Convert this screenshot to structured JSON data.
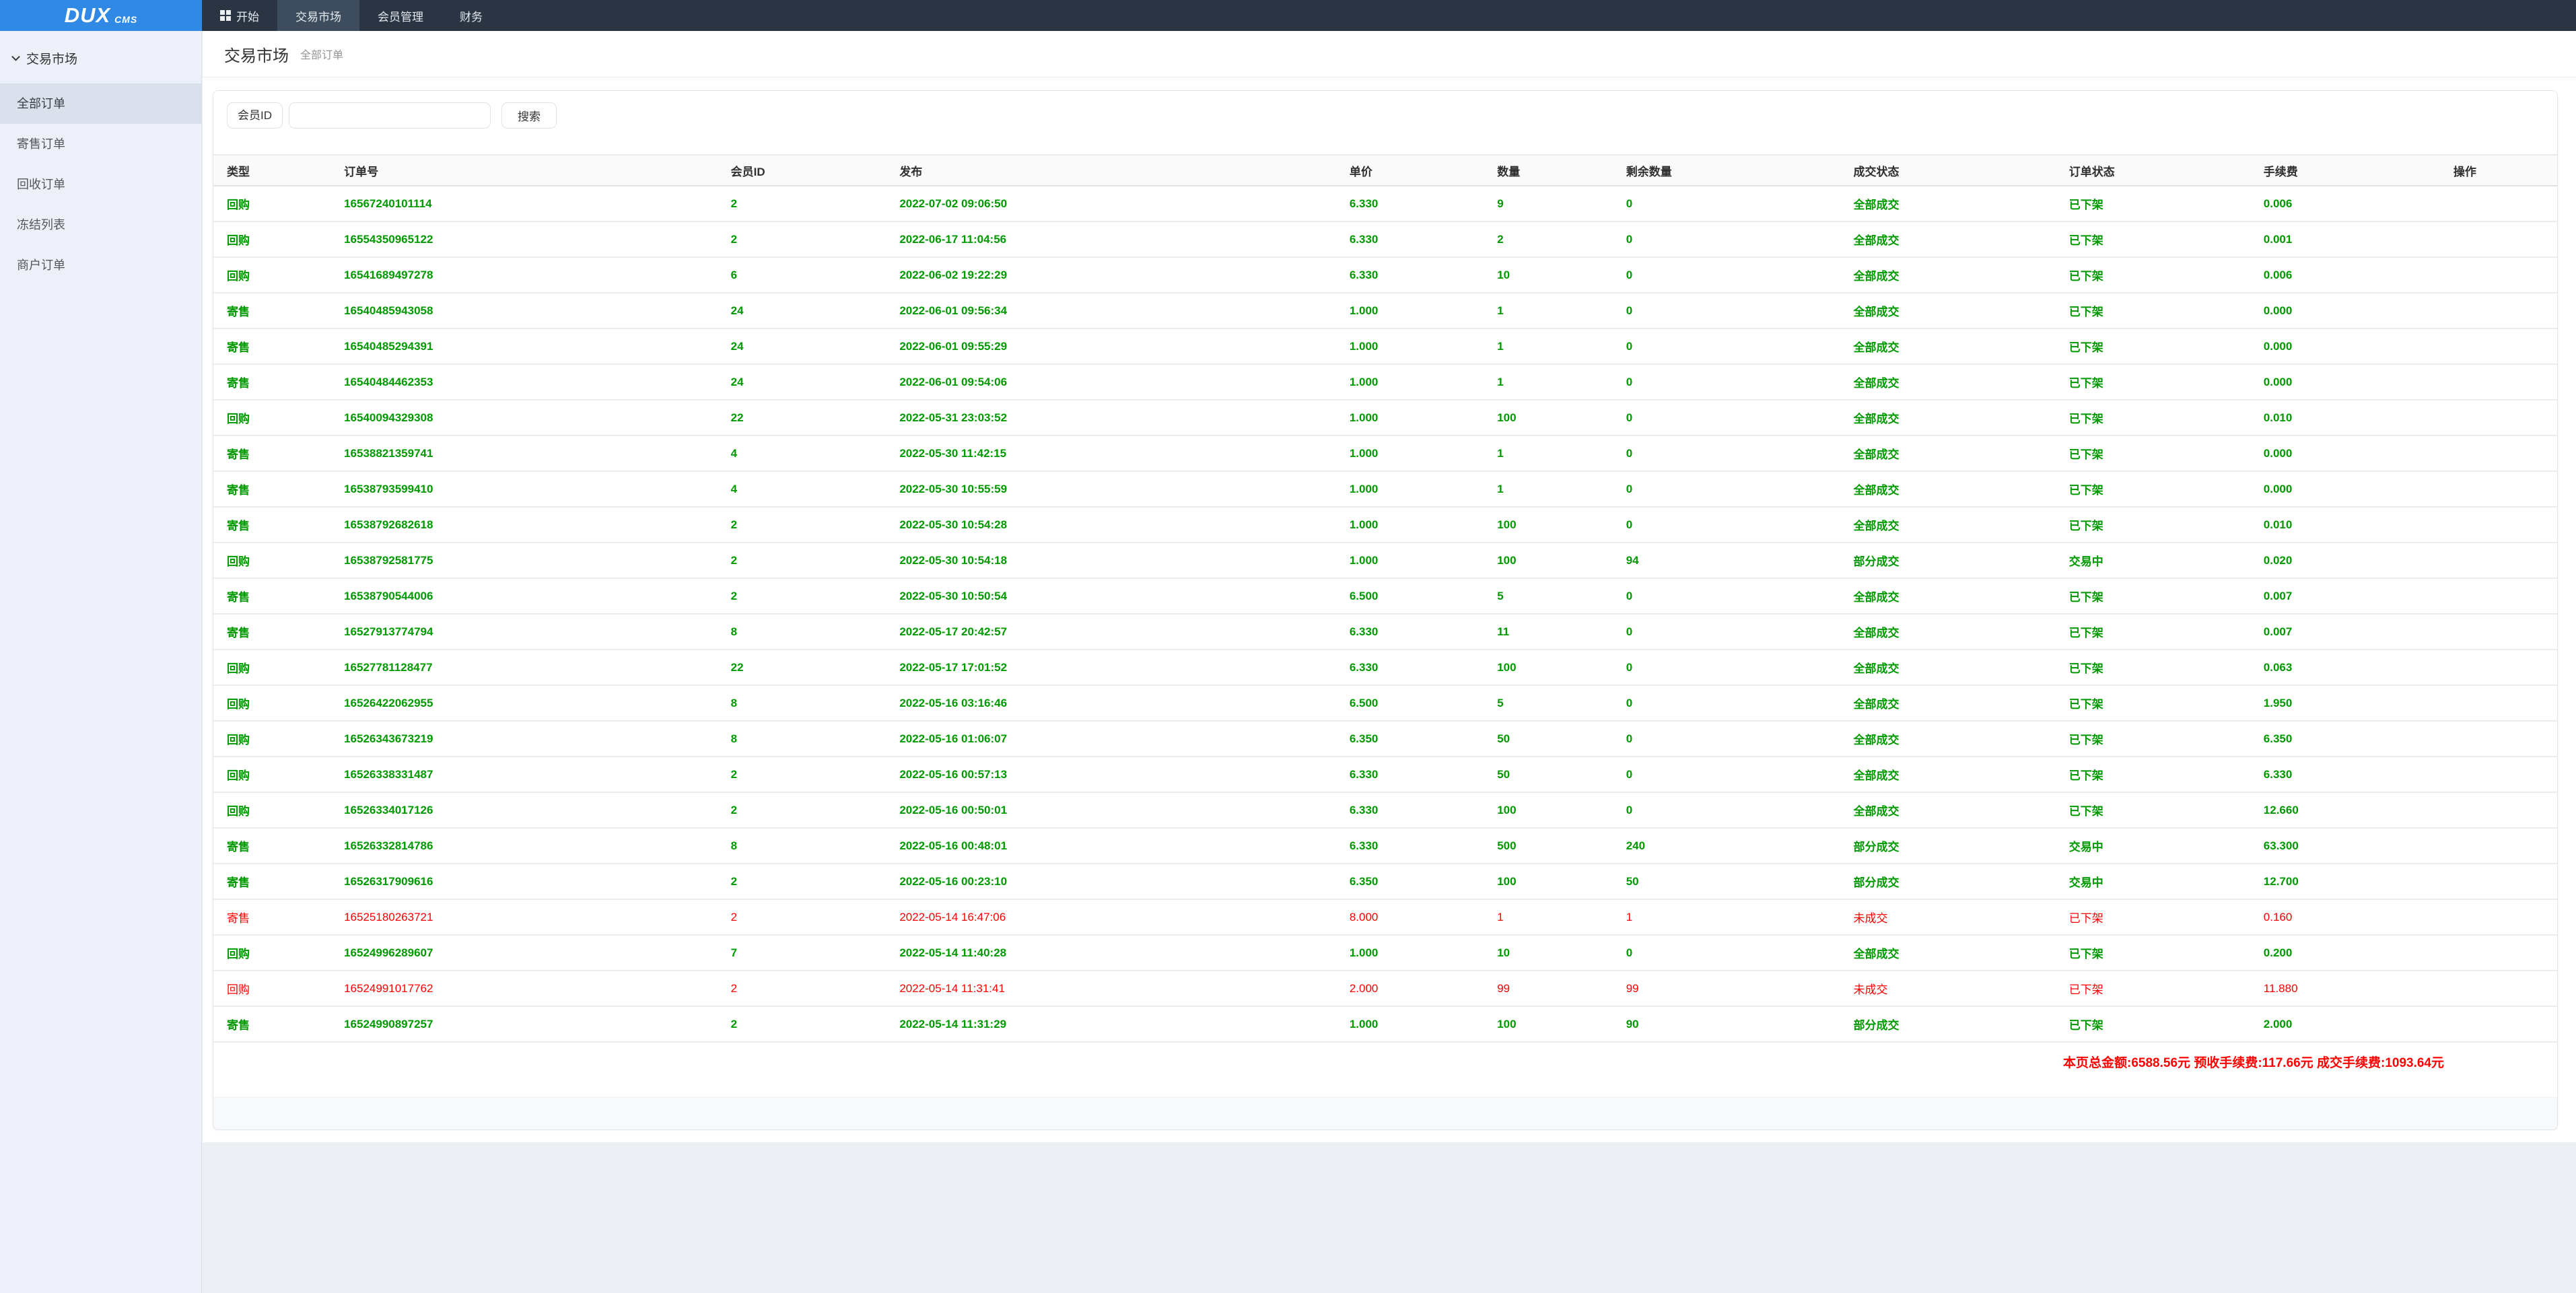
{
  "brand": {
    "name": "DUX",
    "suffix": "CMS"
  },
  "navbar": {
    "items": [
      {
        "label": "开始",
        "icon": "windows",
        "active": false
      },
      {
        "label": "交易市场",
        "icon": null,
        "active": true
      },
      {
        "label": "会员管理",
        "icon": null,
        "active": false
      },
      {
        "label": "财务",
        "icon": null,
        "active": false
      }
    ]
  },
  "sidebar": {
    "group": "交易市场",
    "items": [
      {
        "label": "全部订单",
        "active": true
      },
      {
        "label": "寄售订单",
        "active": false
      },
      {
        "label": "回收订单",
        "active": false
      },
      {
        "label": "冻结列表",
        "active": false
      },
      {
        "label": "商户订单",
        "active": false
      }
    ]
  },
  "breadcrumb": {
    "title": "交易市场",
    "crumb": "全部订单"
  },
  "search": {
    "label": "会员ID",
    "value": "",
    "button": "搜索"
  },
  "table": {
    "columns": [
      "类型",
      "订单号",
      "会员ID",
      "发布",
      "单价",
      "数量",
      "剩余数量",
      "成交状态",
      "订单状态",
      "手续费",
      "操作"
    ],
    "col_widths": [
      "5%",
      "16.5%",
      "7.2%",
      "19.2%",
      "6.3%",
      "5.5%",
      "9.7%",
      "9.2%",
      "8.3%",
      "8.1%",
      "5%"
    ],
    "rows": [
      {
        "type": "回购",
        "order_no": "16567240101114",
        "member_id": "2",
        "published": "2022-07-02 09:06:50",
        "price": "6.330",
        "qty": "9",
        "remaining": "0",
        "deal_status": "全部成交",
        "order_status": "已下架",
        "fee": "0.006",
        "action": "",
        "tone": "green"
      },
      {
        "type": "回购",
        "order_no": "16554350965122",
        "member_id": "2",
        "published": "2022-06-17 11:04:56",
        "price": "6.330",
        "qty": "2",
        "remaining": "0",
        "deal_status": "全部成交",
        "order_status": "已下架",
        "fee": "0.001",
        "action": "",
        "tone": "green"
      },
      {
        "type": "回购",
        "order_no": "16541689497278",
        "member_id": "6",
        "published": "2022-06-02 19:22:29",
        "price": "6.330",
        "qty": "10",
        "remaining": "0",
        "deal_status": "全部成交",
        "order_status": "已下架",
        "fee": "0.006",
        "action": "",
        "tone": "green"
      },
      {
        "type": "寄售",
        "order_no": "16540485943058",
        "member_id": "24",
        "published": "2022-06-01 09:56:34",
        "price": "1.000",
        "qty": "1",
        "remaining": "0",
        "deal_status": "全部成交",
        "order_status": "已下架",
        "fee": "0.000",
        "action": "",
        "tone": "green"
      },
      {
        "type": "寄售",
        "order_no": "16540485294391",
        "member_id": "24",
        "published": "2022-06-01 09:55:29",
        "price": "1.000",
        "qty": "1",
        "remaining": "0",
        "deal_status": "全部成交",
        "order_status": "已下架",
        "fee": "0.000",
        "action": "",
        "tone": "green"
      },
      {
        "type": "寄售",
        "order_no": "16540484462353",
        "member_id": "24",
        "published": "2022-06-01 09:54:06",
        "price": "1.000",
        "qty": "1",
        "remaining": "0",
        "deal_status": "全部成交",
        "order_status": "已下架",
        "fee": "0.000",
        "action": "",
        "tone": "green"
      },
      {
        "type": "回购",
        "order_no": "16540094329308",
        "member_id": "22",
        "published": "2022-05-31 23:03:52",
        "price": "1.000",
        "qty": "100",
        "remaining": "0",
        "deal_status": "全部成交",
        "order_status": "已下架",
        "fee": "0.010",
        "action": "",
        "tone": "green"
      },
      {
        "type": "寄售",
        "order_no": "16538821359741",
        "member_id": "4",
        "published": "2022-05-30 11:42:15",
        "price": "1.000",
        "qty": "1",
        "remaining": "0",
        "deal_status": "全部成交",
        "order_status": "已下架",
        "fee": "0.000",
        "action": "",
        "tone": "green"
      },
      {
        "type": "寄售",
        "order_no": "16538793599410",
        "member_id": "4",
        "published": "2022-05-30 10:55:59",
        "price": "1.000",
        "qty": "1",
        "remaining": "0",
        "deal_status": "全部成交",
        "order_status": "已下架",
        "fee": "0.000",
        "action": "",
        "tone": "green"
      },
      {
        "type": "寄售",
        "order_no": "16538792682618",
        "member_id": "2",
        "published": "2022-05-30 10:54:28",
        "price": "1.000",
        "qty": "100",
        "remaining": "0",
        "deal_status": "全部成交",
        "order_status": "已下架",
        "fee": "0.010",
        "action": "",
        "tone": "green"
      },
      {
        "type": "回购",
        "order_no": "16538792581775",
        "member_id": "2",
        "published": "2022-05-30 10:54:18",
        "price": "1.000",
        "qty": "100",
        "remaining": "94",
        "deal_status": "部分成交",
        "order_status": "交易中",
        "fee": "0.020",
        "action": "",
        "tone": "green"
      },
      {
        "type": "寄售",
        "order_no": "16538790544006",
        "member_id": "2",
        "published": "2022-05-30 10:50:54",
        "price": "6.500",
        "qty": "5",
        "remaining": "0",
        "deal_status": "全部成交",
        "order_status": "已下架",
        "fee": "0.007",
        "action": "",
        "tone": "green"
      },
      {
        "type": "寄售",
        "order_no": "16527913774794",
        "member_id": "8",
        "published": "2022-05-17 20:42:57",
        "price": "6.330",
        "qty": "11",
        "remaining": "0",
        "deal_status": "全部成交",
        "order_status": "已下架",
        "fee": "0.007",
        "action": "",
        "tone": "green"
      },
      {
        "type": "回购",
        "order_no": "16527781128477",
        "member_id": "22",
        "published": "2022-05-17 17:01:52",
        "price": "6.330",
        "qty": "100",
        "remaining": "0",
        "deal_status": "全部成交",
        "order_status": "已下架",
        "fee": "0.063",
        "action": "",
        "tone": "green"
      },
      {
        "type": "回购",
        "order_no": "16526422062955",
        "member_id": "8",
        "published": "2022-05-16 03:16:46",
        "price": "6.500",
        "qty": "5",
        "remaining": "0",
        "deal_status": "全部成交",
        "order_status": "已下架",
        "fee": "1.950",
        "action": "",
        "tone": "green"
      },
      {
        "type": "回购",
        "order_no": "16526343673219",
        "member_id": "8",
        "published": "2022-05-16 01:06:07",
        "price": "6.350",
        "qty": "50",
        "remaining": "0",
        "deal_status": "全部成交",
        "order_status": "已下架",
        "fee": "6.350",
        "action": "",
        "tone": "green"
      },
      {
        "type": "回购",
        "order_no": "16526338331487",
        "member_id": "2",
        "published": "2022-05-16 00:57:13",
        "price": "6.330",
        "qty": "50",
        "remaining": "0",
        "deal_status": "全部成交",
        "order_status": "已下架",
        "fee": "6.330",
        "action": "",
        "tone": "green"
      },
      {
        "type": "回购",
        "order_no": "16526334017126",
        "member_id": "2",
        "published": "2022-05-16 00:50:01",
        "price": "6.330",
        "qty": "100",
        "remaining": "0",
        "deal_status": "全部成交",
        "order_status": "已下架",
        "fee": "12.660",
        "action": "",
        "tone": "green"
      },
      {
        "type": "寄售",
        "order_no": "16526332814786",
        "member_id": "8",
        "published": "2022-05-16 00:48:01",
        "price": "6.330",
        "qty": "500",
        "remaining": "240",
        "deal_status": "部分成交",
        "order_status": "交易中",
        "fee": "63.300",
        "action": "",
        "tone": "green"
      },
      {
        "type": "寄售",
        "order_no": "16526317909616",
        "member_id": "2",
        "published": "2022-05-16 00:23:10",
        "price": "6.350",
        "qty": "100",
        "remaining": "50",
        "deal_status": "部分成交",
        "order_status": "交易中",
        "fee": "12.700",
        "action": "",
        "tone": "green"
      },
      {
        "type": "寄售",
        "order_no": "16525180263721",
        "member_id": "2",
        "published": "2022-05-14 16:47:06",
        "price": "8.000",
        "qty": "1",
        "remaining": "1",
        "deal_status": "未成交",
        "order_status": "已下架",
        "fee": "0.160",
        "action": "",
        "tone": "red"
      },
      {
        "type": "回购",
        "order_no": "16524996289607",
        "member_id": "7",
        "published": "2022-05-14 11:40:28",
        "price": "1.000",
        "qty": "10",
        "remaining": "0",
        "deal_status": "全部成交",
        "order_status": "已下架",
        "fee": "0.200",
        "action": "",
        "tone": "green"
      },
      {
        "type": "回购",
        "order_no": "16524991017762",
        "member_id": "2",
        "published": "2022-05-14 11:31:41",
        "price": "2.000",
        "qty": "99",
        "remaining": "99",
        "deal_status": "未成交",
        "order_status": "已下架",
        "fee": "11.880",
        "action": "",
        "tone": "red"
      },
      {
        "type": "寄售",
        "order_no": "16524990897257",
        "member_id": "2",
        "published": "2022-05-14 11:31:29",
        "price": "1.000",
        "qty": "100",
        "remaining": "90",
        "deal_status": "部分成交",
        "order_status": "已下架",
        "fee": "2.000",
        "action": "",
        "tone": "green"
      }
    ],
    "summary": "本页总金额:6588.56元 预收手续费:117.66元 成交手续费:1093.64元"
  },
  "colors": {
    "logo_blue": "#3089e4",
    "navbar_dark": "#2a3442",
    "navbar_active": "#3d4d5e",
    "sidebar_bg": "#edf0f8",
    "sidebar_active": "#dbe1ec",
    "green": "#009900",
    "red": "#ff0000"
  }
}
